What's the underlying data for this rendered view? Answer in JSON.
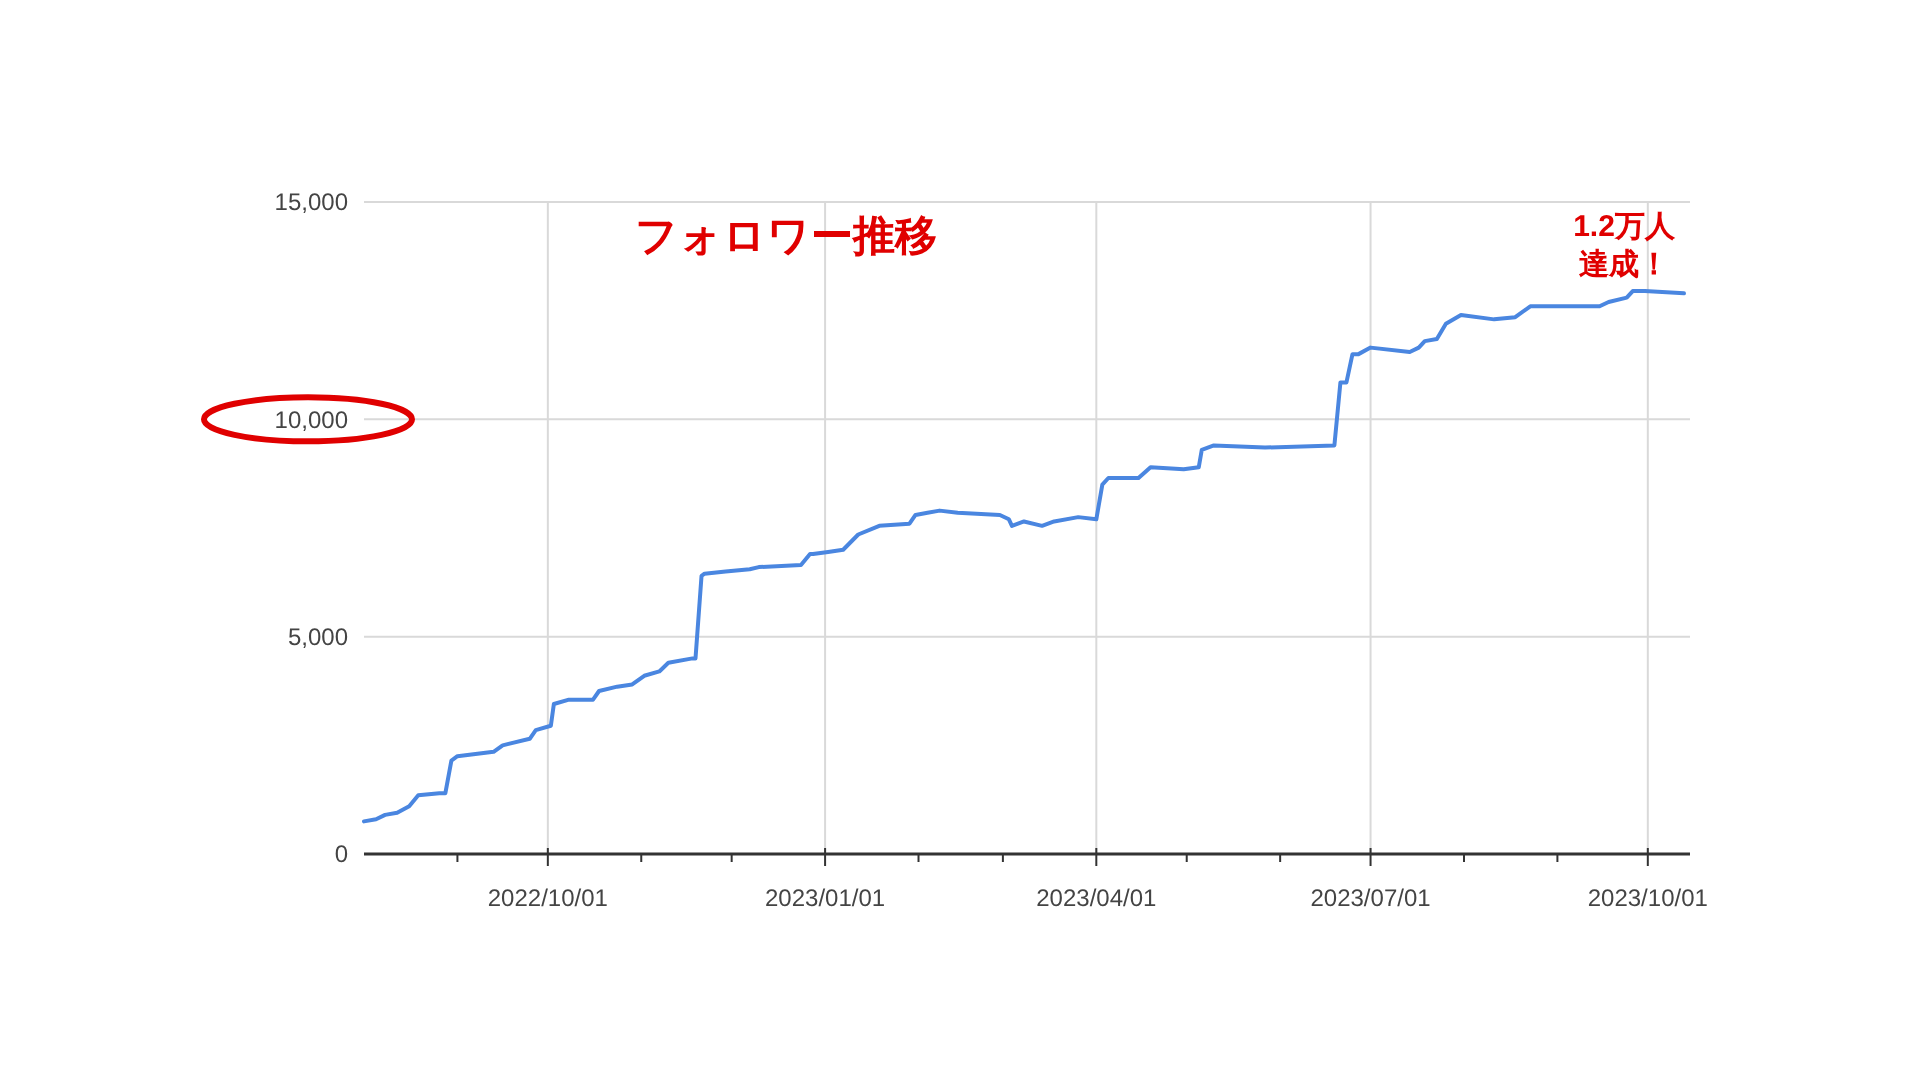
{
  "chart_data": {
    "type": "line",
    "title": "フォロワー推移",
    "annotations": [
      "1.2万人",
      "達成！"
    ],
    "x": [
      "2022-08-01",
      "2022-08-05",
      "2022-08-08",
      "2022-08-12",
      "2022-08-16",
      "2022-08-19",
      "2022-08-26",
      "2022-08-28",
      "2022-08-30",
      "2022-09-01",
      "2022-09-13",
      "2022-09-16",
      "2022-09-25",
      "2022-09-27",
      "2022-10-02",
      "2022-10-03",
      "2022-10-08",
      "2022-10-16",
      "2022-10-18",
      "2022-10-24",
      "2022-10-29",
      "2022-11-02",
      "2022-11-07",
      "2022-11-10",
      "2022-11-18",
      "2022-11-19",
      "2022-11-21",
      "2022-11-22",
      "2022-11-29",
      "2022-12-07",
      "2022-12-10",
      "2022-12-24",
      "2022-12-27",
      "2022-12-28",
      "2023-01-02",
      "2023-01-07",
      "2023-01-12",
      "2023-01-19",
      "2023-01-29",
      "2023-01-31",
      "2023-02-04",
      "2023-02-08",
      "2023-02-14",
      "2023-02-28",
      "2023-03-03",
      "2023-03-04",
      "2023-03-08",
      "2023-03-14",
      "2023-03-18",
      "2023-03-26",
      "2023-04-01",
      "2023-04-03",
      "2023-04-05",
      "2023-04-15",
      "2023-04-19",
      "2023-04-30",
      "2023-05-05",
      "2023-05-06",
      "2023-05-10",
      "2023-05-27",
      "2023-06-19",
      "2023-06-21",
      "2023-06-23",
      "2023-06-25",
      "2023-06-27",
      "2023-07-01",
      "2023-07-14",
      "2023-07-17",
      "2023-07-19",
      "2023-07-23",
      "2023-07-26",
      "2023-07-31",
      "2023-08-11",
      "2023-08-18",
      "2023-08-23",
      "2023-08-28",
      "2023-09-15",
      "2023-09-18",
      "2023-09-24",
      "2023-09-26",
      "2023-09-30",
      "2023-10-13"
    ],
    "series": [
      {
        "color": "#4a86e0",
        "values": [
          750,
          800,
          900,
          950,
          1100,
          1350,
          1400,
          1400,
          2150,
          2250,
          2350,
          2500,
          2650,
          2850,
          2950,
          3450,
          3550,
          3550,
          3750,
          3850,
          3900,
          4100,
          4200,
          4400,
          4500,
          4500,
          6400,
          6450,
          6500,
          6550,
          6600,
          6650,
          6900,
          6900,
          6950,
          7000,
          7350,
          7550,
          7600,
          7800,
          7850,
          7900,
          7850,
          7800,
          7700,
          7550,
          7650,
          7550,
          7650,
          7750,
          7700,
          8500,
          8650,
          8650,
          8900,
          8850,
          8900,
          9300,
          9400,
          9350,
          9400,
          10850,
          10850,
          11500,
          11500,
          11650,
          11550,
          11650,
          11800,
          11850,
          12200,
          12400,
          12300,
          12350,
          12600,
          12600,
          12600,
          12700,
          12800,
          12950,
          12950,
          12900
        ]
      }
    ],
    "xlim": [
      "2022-08-01",
      "2023-10-15"
    ],
    "xticks": [
      {
        "value": "2022-09-01",
        "label": null
      },
      {
        "value": "2022-10-01",
        "label": "2022/10/01"
      },
      {
        "value": "2022-11-01",
        "label": null
      },
      {
        "value": "2022-12-01",
        "label": null
      },
      {
        "value": "2023-01-01",
        "label": "2023/01/01"
      },
      {
        "value": "2023-02-01",
        "label": null
      },
      {
        "value": "2023-03-01",
        "label": null
      },
      {
        "value": "2023-04-01",
        "label": "2023/04/01"
      },
      {
        "value": "2023-05-01",
        "label": null
      },
      {
        "value": "2023-06-01",
        "label": null
      },
      {
        "value": "2023-07-01",
        "label": "2023/07/01"
      },
      {
        "value": "2023-08-01",
        "label": null
      },
      {
        "value": "2023-09-01",
        "label": null
      },
      {
        "value": "2023-10-01",
        "label": "2023/10/01"
      }
    ],
    "ylim": [
      0,
      15000
    ],
    "yticks": [
      0,
      {
        "value": 5000,
        "label": "5,000"
      },
      {
        "value": 10000,
        "label": "10,000"
      },
      {
        "value": 15000,
        "label": "15,000"
      }
    ],
    "grid": true,
    "marker": "none",
    "line_style": "solid"
  }
}
